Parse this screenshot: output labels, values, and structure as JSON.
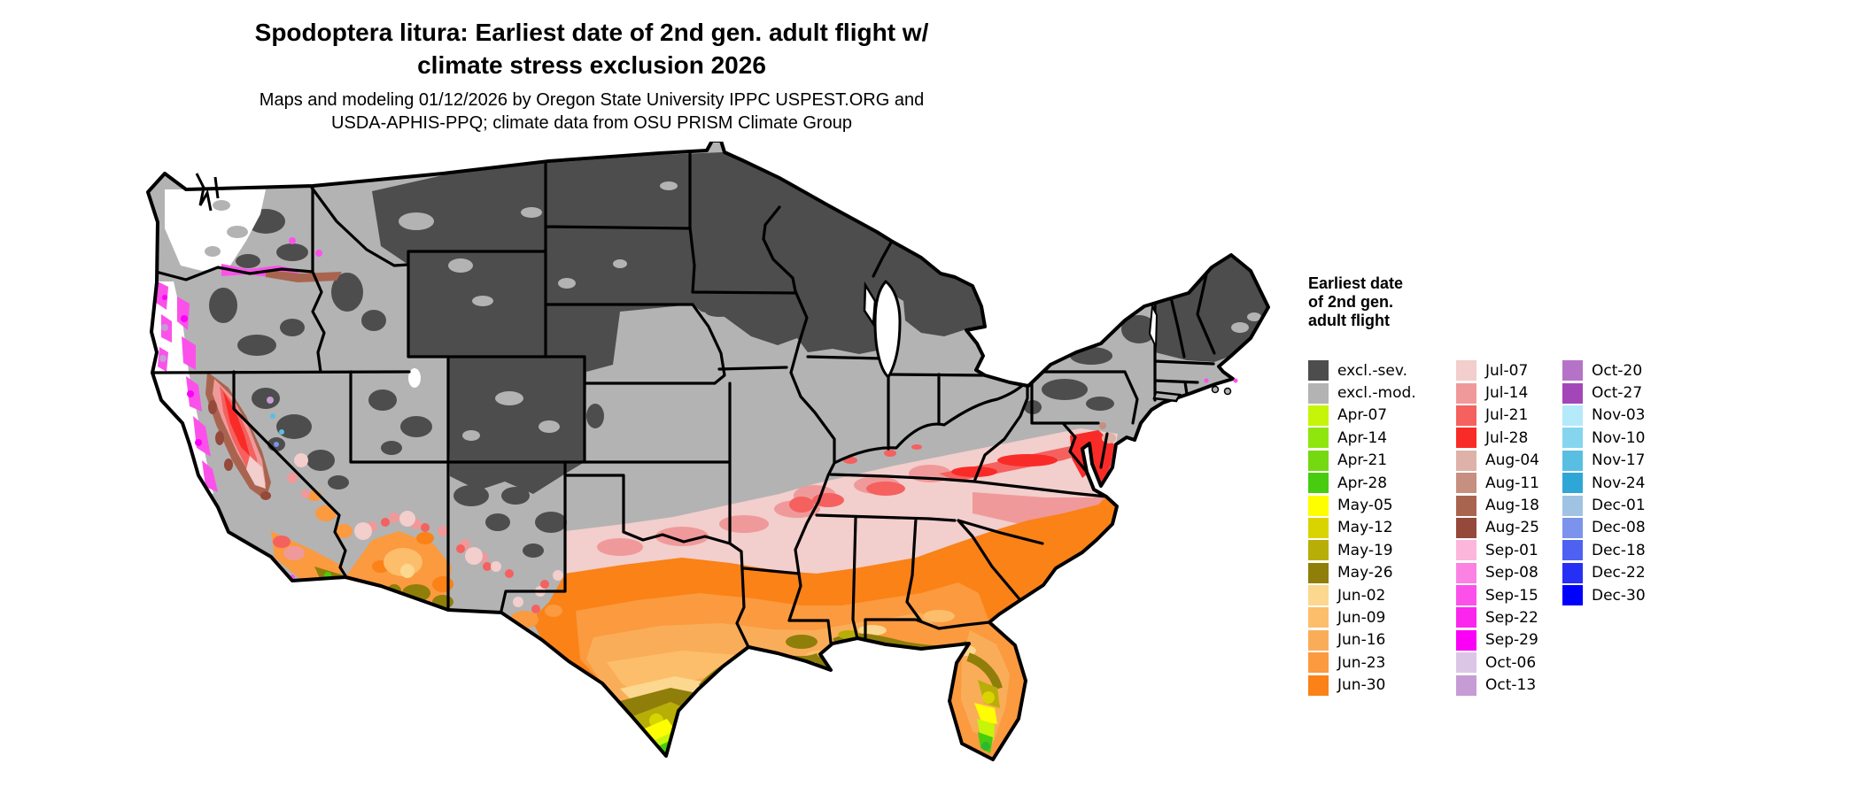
{
  "title": {
    "line1": "Spodoptera litura: Earliest date of 2nd gen. adult flight w/",
    "line2": "climate stress exclusion 2026"
  },
  "subtitle": {
    "line1": "Maps and modeling 01/12/2026 by Oregon State University IPPC USPEST.ORG and",
    "line2": "USDA-APHIS-PPQ; climate data from OSU PRISM Climate Group"
  },
  "legend": {
    "title_lines": [
      "Earliest date",
      "of 2nd gen.",
      "adult flight"
    ],
    "columns": [
      [
        {
          "label": "excl.-sev.",
          "color": "#4D4D4D"
        },
        {
          "label": "excl.-mod.",
          "color": "#B3B3B3"
        },
        {
          "label": "Apr-07",
          "color": "#C6F50A"
        },
        {
          "label": "Apr-14",
          "color": "#8FE60F"
        },
        {
          "label": "Apr-21",
          "color": "#75D912"
        },
        {
          "label": "Apr-28",
          "color": "#47CC10"
        },
        {
          "label": "May-05",
          "color": "#FEFE00"
        },
        {
          "label": "May-12",
          "color": "#D9D400"
        },
        {
          "label": "May-19",
          "color": "#B8AE08"
        },
        {
          "label": "May-26",
          "color": "#8F7E0A"
        },
        {
          "label": "Jun-02",
          "color": "#FCD78F"
        },
        {
          "label": "Jun-09",
          "color": "#FCBE6B"
        },
        {
          "label": "Jun-16",
          "color": "#FAAD59"
        },
        {
          "label": "Jun-23",
          "color": "#FB9A3F"
        },
        {
          "label": "Jun-30",
          "color": "#FA8217"
        }
      ],
      [
        {
          "label": "Jul-07",
          "color": "#F2CECC"
        },
        {
          "label": "Jul-14",
          "color": "#F0999A"
        },
        {
          "label": "Jul-21",
          "color": "#F4615F"
        },
        {
          "label": "Jul-28",
          "color": "#F92B28"
        },
        {
          "label": "Aug-04",
          "color": "#DEB2A8"
        },
        {
          "label": "Aug-11",
          "color": "#C68F7F"
        },
        {
          "label": "Aug-18",
          "color": "#A96450"
        },
        {
          "label": "Aug-25",
          "color": "#94493A"
        },
        {
          "label": "Sep-01",
          "color": "#FCB6DC"
        },
        {
          "label": "Sep-08",
          "color": "#FB82E3"
        },
        {
          "label": "Sep-15",
          "color": "#FB51EA"
        },
        {
          "label": "Sep-22",
          "color": "#FB26EE"
        },
        {
          "label": "Sep-29",
          "color": "#FA00F7"
        },
        {
          "label": "Oct-06",
          "color": "#DCC6E6"
        },
        {
          "label": "Oct-13",
          "color": "#C79BD4"
        }
      ],
      [
        {
          "label": "Oct-20",
          "color": "#B573C7"
        },
        {
          "label": "Oct-27",
          "color": "#A347B8"
        },
        {
          "label": "Nov-03",
          "color": "#B5EAFB"
        },
        {
          "label": "Nov-10",
          "color": "#85D5EE"
        },
        {
          "label": "Nov-17",
          "color": "#58BFE2"
        },
        {
          "label": "Nov-24",
          "color": "#2FA7D6"
        },
        {
          "label": "Dec-01",
          "color": "#A0C3E4"
        },
        {
          "label": "Dec-08",
          "color": "#7B93EC"
        },
        {
          "label": "Dec-18",
          "color": "#4D61F2"
        },
        {
          "label": "Dec-22",
          "color": "#2630F5"
        },
        {
          "label": "Dec-30",
          "color": "#0000FE"
        }
      ]
    ]
  },
  "map": {
    "background": "#FFFFFF",
    "state_border_color": "#000000",
    "no_data_color": "#FFFFFF",
    "excluded_severe_color": "#4D4D4D",
    "excluded_moderate_color": "#B3B3B3"
  }
}
